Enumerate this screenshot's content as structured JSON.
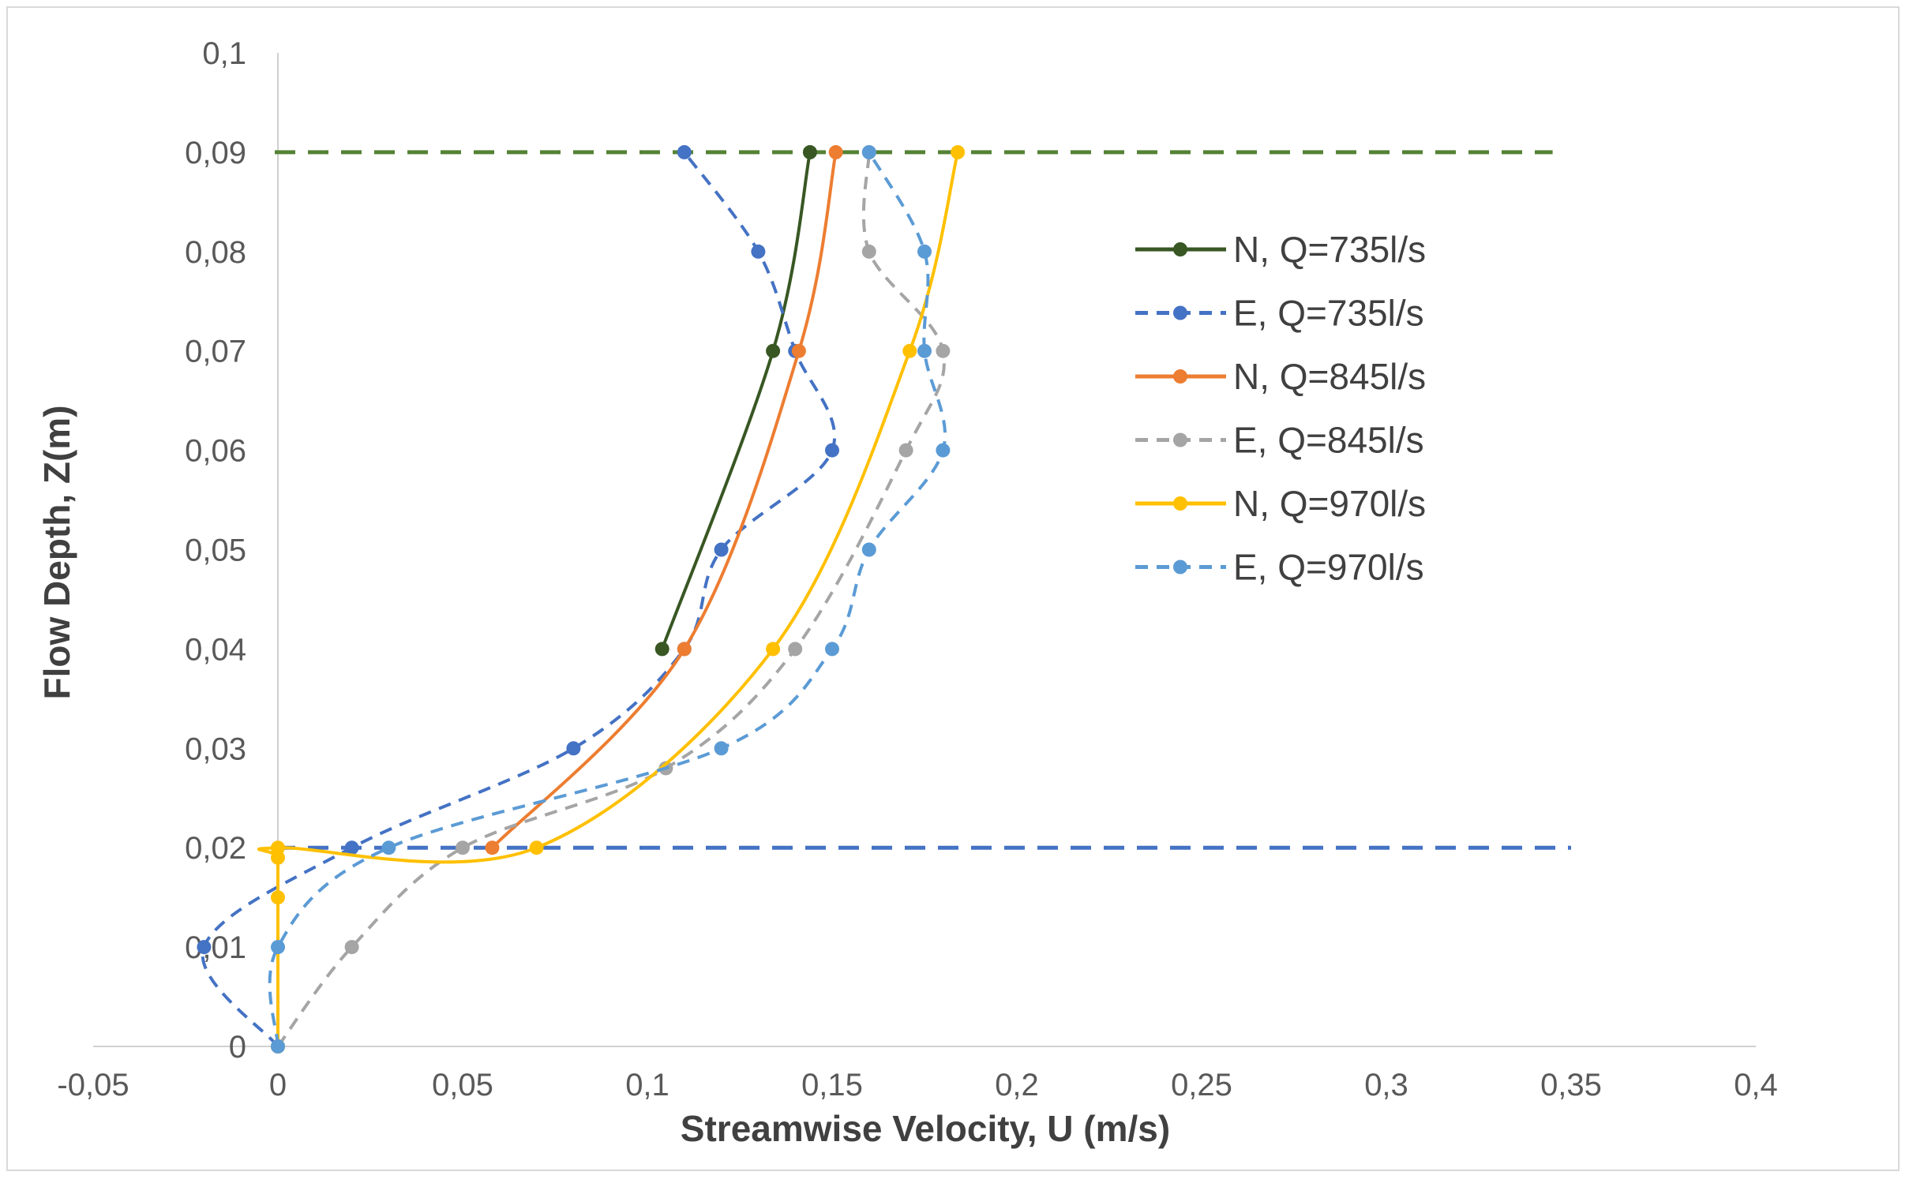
{
  "chart_data": {
    "type": "line",
    "title": "",
    "xlabel": "Streamwise Velocity, U (m/s)",
    "ylabel": "Flow Depth, Z(m)",
    "xlim": [
      -0.05,
      0.4
    ],
    "ylim": [
      0,
      0.1
    ],
    "x_ticks": [
      -0.05,
      0,
      0.05,
      0.1,
      0.15,
      0.2,
      0.25,
      0.3,
      0.35,
      0.4
    ],
    "x_tick_labels": [
      "-0,05",
      "0",
      "0,05",
      "0,1",
      "0,15",
      "0,2",
      "0,25",
      "0,3",
      "0,35",
      "0,4"
    ],
    "y_ticks": [
      0,
      0.01,
      0.02,
      0.03,
      0.04,
      0.05,
      0.06,
      0.07,
      0.08,
      0.09,
      0.1
    ],
    "y_tick_labels": [
      "0",
      "0,01",
      "0,02",
      "0,03",
      "0,04",
      "0,05",
      "0,06",
      "0,07",
      "0,08",
      "0,09",
      "0,1"
    ],
    "grid": false,
    "legend_position": "right",
    "series": [
      {
        "name": "N, Q=735l/s",
        "color": "#385723",
        "dash": "solid",
        "points": [
          [
            0.104,
            0.04
          ],
          [
            0.134,
            0.07
          ],
          [
            0.144,
            0.09
          ]
        ]
      },
      {
        "name": "E, Q=735l/s",
        "color": "#4472C4",
        "dash": "dashed",
        "points": [
          [
            0,
            0
          ],
          [
            -0.02,
            0.01
          ],
          [
            0.02,
            0.02
          ],
          [
            0.08,
            0.03
          ],
          [
            0.11,
            0.04
          ],
          [
            0.12,
            0.05
          ],
          [
            0.15,
            0.06
          ],
          [
            0.14,
            0.07
          ],
          [
            0.13,
            0.08
          ],
          [
            0.11,
            0.09
          ]
        ]
      },
      {
        "name": "N, Q=845l/s",
        "color": "#ED7D31",
        "dash": "solid",
        "points": [
          [
            0.058,
            0.02
          ],
          [
            0.11,
            0.04
          ],
          [
            0.141,
            0.07
          ],
          [
            0.151,
            0.09
          ]
        ]
      },
      {
        "name": "E, Q=845l/s",
        "color": "#A5A5A5",
        "dash": "dashed",
        "points": [
          [
            0,
            0
          ],
          [
            0.02,
            0.01
          ],
          [
            0.05,
            0.02
          ],
          [
            0.105,
            0.028
          ],
          [
            0.14,
            0.04
          ],
          [
            0.17,
            0.06
          ],
          [
            0.18,
            0.07
          ],
          [
            0.16,
            0.08
          ],
          [
            0.16,
            0.09
          ]
        ]
      },
      {
        "name": "N, Q=970l/s",
        "color": "#FFC000",
        "dash": "solid",
        "points": [
          [
            0,
            0
          ],
          [
            0,
            0.015
          ],
          [
            0,
            0.019
          ],
          [
            0,
            0.02
          ],
          [
            0.07,
            0.02
          ],
          [
            0.134,
            0.04
          ],
          [
            0.171,
            0.07
          ],
          [
            0.184,
            0.09
          ]
        ]
      },
      {
        "name": "E, Q=970l/s",
        "color": "#5B9BD5",
        "dash": "dashed",
        "points": [
          [
            0,
            0
          ],
          [
            0,
            0.01
          ],
          [
            0.03,
            0.02
          ],
          [
            0.12,
            0.03
          ],
          [
            0.15,
            0.04
          ],
          [
            0.16,
            0.05
          ],
          [
            0.18,
            0.06
          ],
          [
            0.175,
            0.07
          ],
          [
            0.175,
            0.08
          ],
          [
            0.16,
            0.09
          ]
        ]
      }
    ],
    "reference_lines": [
      {
        "y": 0.09,
        "x_range": [
          0,
          0.345
        ],
        "color": "#548235",
        "dash": "dashed"
      },
      {
        "y": 0.02,
        "x_range": [
          0,
          0.35
        ],
        "color": "#4472C4",
        "dash": "dashed"
      }
    ]
  }
}
